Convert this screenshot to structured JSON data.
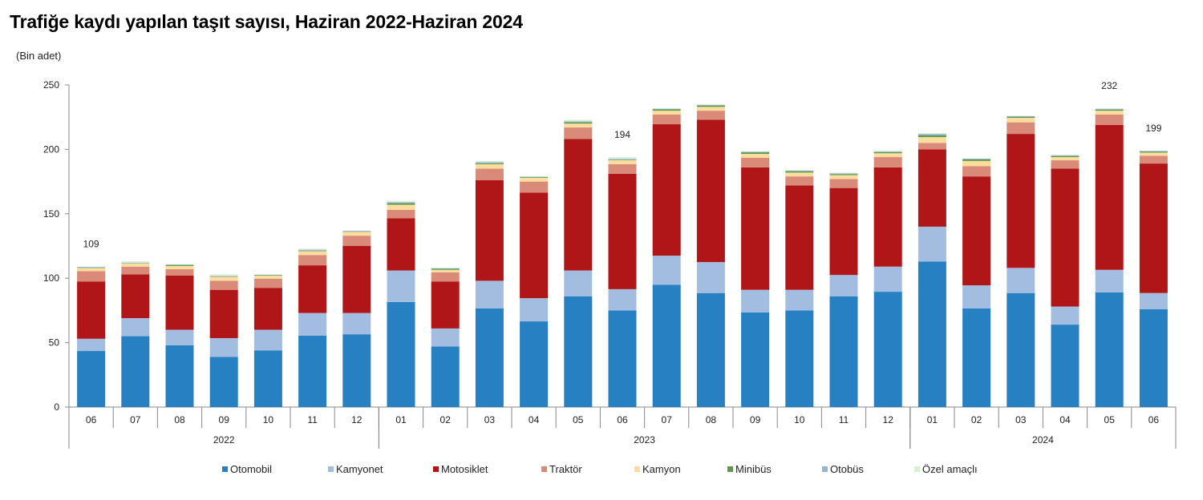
{
  "title": "Trafiğe kaydı yapılan taşıt sayısı, Haziran 2022-Haziran 2024",
  "unit_label": "(Bin adet)",
  "legend": [
    {
      "name": "Otomobil",
      "color": "#2680c2",
      "x": 277
    },
    {
      "name": "Kamyonet",
      "color": "#a3bde0",
      "x": 409
    },
    {
      "name": "Motosiklet",
      "color": "#b01518",
      "x": 540
    },
    {
      "name": "Traktör",
      "color": "#d98a78",
      "x": 675
    },
    {
      "name": "Kamyon",
      "color": "#fddc9e",
      "x": 791
    },
    {
      "name": "Minibüs",
      "color": "#5a9a47",
      "x": 907
    },
    {
      "name": "Otobüs",
      "color": "#95b3d7",
      "x": 1025
    },
    {
      "name": "Özel amaçlı",
      "color": "#dcefd6",
      "x": 1140
    }
  ],
  "chart_data": {
    "type": "bar",
    "stacked": true,
    "title": "Trafiğe kaydı yapılan taşıt sayısı, Haziran 2022-Haziran 2024",
    "xlabel": "",
    "ylabel": "(Bin adet)",
    "ylim": [
      0,
      250
    ],
    "yticks": [
      0,
      50,
      100,
      150,
      200,
      250
    ],
    "grid": false,
    "legend_position": "bottom",
    "categories": [
      "06",
      "07",
      "08",
      "09",
      "10",
      "11",
      "12",
      "01",
      "02",
      "03",
      "04",
      "05",
      "06",
      "07",
      "08",
      "09",
      "10",
      "11",
      "12",
      "01",
      "02",
      "03",
      "04",
      "05",
      "06"
    ],
    "year_groups": [
      {
        "label": "2022",
        "start": 0,
        "end": 6
      },
      {
        "label": "2023",
        "start": 7,
        "end": 18
      },
      {
        "label": "2024",
        "start": 19,
        "end": 24
      }
    ],
    "series": [
      {
        "name": "Otomobil",
        "color": "#2680c2",
        "values": [
          43.5,
          55,
          48,
          39,
          44,
          55.5,
          56.5,
          81.5,
          47,
          76.5,
          66.5,
          86,
          75,
          95,
          88.5,
          73.5,
          75,
          86,
          89.5,
          113,
          76.5,
          88.5,
          64,
          89,
          76
        ]
      },
      {
        "name": "Kamyonet",
        "color": "#a3bde0",
        "values": [
          9.5,
          14,
          12,
          14.5,
          16,
          17.5,
          16.5,
          24.5,
          14,
          21.5,
          18,
          20,
          16.5,
          22.5,
          24,
          17.5,
          16,
          16.5,
          19.5,
          27,
          18,
          19.5,
          14,
          17.5,
          12.5
        ]
      },
      {
        "name": "Motosiklet",
        "color": "#b01518",
        "values": [
          44.5,
          34,
          42,
          37.5,
          32.5,
          37,
          52,
          40.5,
          36.5,
          78,
          82,
          102,
          89.5,
          102,
          110.5,
          95,
          81,
          67.5,
          77,
          60,
          84.5,
          104,
          107,
          112.5,
          100.5
        ]
      },
      {
        "name": "Traktör",
        "color": "#d98a78",
        "values": [
          8,
          6,
          5,
          7,
          7,
          8,
          8,
          6.5,
          7,
          9,
          8.5,
          9,
          7.5,
          7.5,
          7,
          7.5,
          7,
          7,
          8,
          5,
          8,
          9,
          6.5,
          8,
          6
        ]
      },
      {
        "name": "Kamyon",
        "color": "#fddc9e",
        "values": [
          2.5,
          2.5,
          2.5,
          3,
          2.5,
          3,
          3,
          4,
          2,
          3.5,
          3,
          3,
          3,
          3,
          3,
          3,
          3,
          3,
          3,
          4.5,
          4,
          3.5,
          2.5,
          3,
          2.5
        ]
      },
      {
        "name": "Minibüs",
        "color": "#5a9a47",
        "values": [
          0.3,
          0.3,
          0.8,
          0.3,
          0.3,
          0.3,
          0.3,
          1.2,
          0.8,
          0.7,
          0.5,
          1,
          0.3,
          1,
          1,
          1.2,
          1,
          0.8,
          0.8,
          1.5,
          1.2,
          0.8,
          0.8,
          0.8,
          0.8
        ]
      },
      {
        "name": "Otobüs",
        "color": "#95b3d7",
        "values": [
          0.5,
          0.3,
          0.3,
          0.4,
          0.4,
          0.8,
          0.5,
          0.8,
          0.5,
          0.8,
          0.3,
          0.8,
          0.8,
          0.5,
          0.5,
          0.5,
          0.6,
          0.6,
          0.5,
          1,
          0.6,
          0.6,
          0.6,
          0.6,
          0.5
        ]
      },
      {
        "name": "Özel amaçlı",
        "color": "#dcefd6",
        "values": [
          0.2,
          1,
          0.4,
          1.3,
          0.3,
          0.9,
          0.2,
          1,
          0.2,
          1,
          0.2,
          1.2,
          1.4,
          0.5,
          0.5,
          0.3,
          0.4,
          0.6,
          0.7,
          0.5,
          0.2,
          0.1,
          0.6,
          0.6,
          0.2
        ]
      }
    ],
    "totals": [
      109,
      112,
      111,
      102,
      102,
      123,
      137,
      160,
      108,
      191,
      179,
      223,
      194,
      232,
      235,
      198,
      185,
      182,
      199,
      213,
      193,
      226,
      196,
      232,
      199
    ],
    "annotations": [
      {
        "index": 0,
        "text": "109"
      },
      {
        "index": 12,
        "text": "194"
      },
      {
        "index": 23,
        "text": "232"
      },
      {
        "index": 24,
        "text": "199"
      }
    ]
  }
}
